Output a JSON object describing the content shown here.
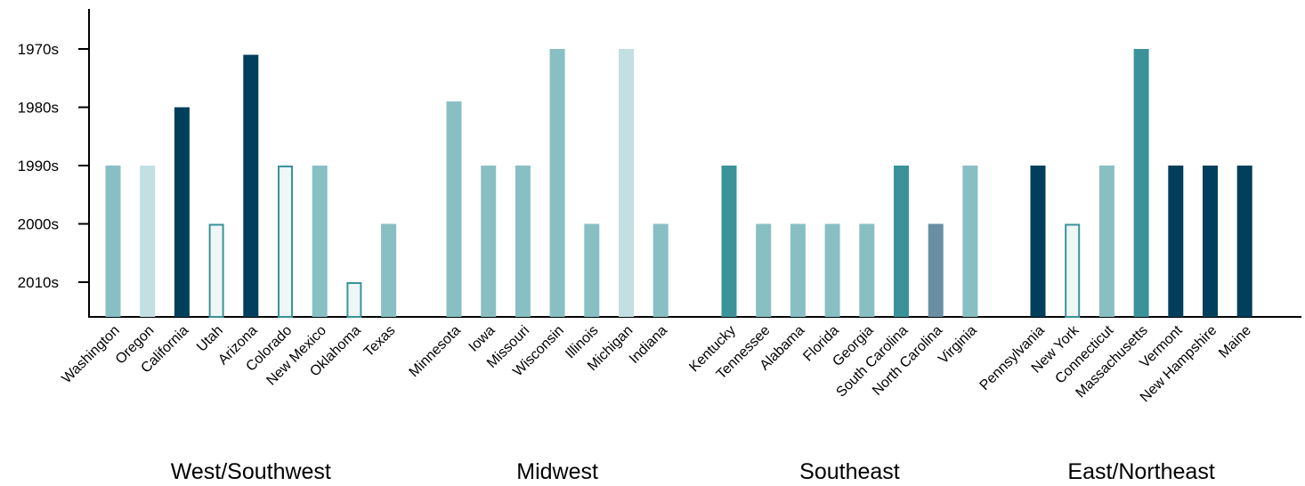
{
  "colors": {
    "dark_blue": "#003f5c",
    "teal": "#3a9399",
    "light_teal": "#88bfc3",
    "pale": "#c4dfe2",
    "slate": "#6a8fa4",
    "outline_fill": "#eef6f6",
    "outline_stroke": "#3a9399"
  },
  "chart_data": {
    "type": "bar",
    "orientation": "vertical",
    "y_axis": {
      "ticks": [
        "1970s",
        "1980s",
        "1990s",
        "2000s",
        "2010s"
      ],
      "tick_values": [
        1970,
        1980,
        1990,
        2000,
        2010
      ],
      "reversed": true,
      "baseline": 2015.5,
      "range": [
        2015.5,
        1965
      ]
    },
    "grid": false,
    "legend": null,
    "groups": [
      {
        "label": "West/Southwest",
        "bars": [
          {
            "category": "Washington",
            "value": 1990,
            "style": "light_teal"
          },
          {
            "category": "Oregon",
            "value": 1990,
            "style": "pale"
          },
          {
            "category": "California",
            "value": 1980,
            "style": "dark_blue"
          },
          {
            "category": "Utah",
            "value": 2000,
            "style": "outline"
          },
          {
            "category": "Arizona",
            "value": 1971,
            "style": "dark_blue"
          },
          {
            "category": "Colorado",
            "value": 1990,
            "style": "outline"
          },
          {
            "category": "New Mexico",
            "value": 1990,
            "style": "light_teal"
          },
          {
            "category": "Oklahoma",
            "value": 2010,
            "style": "outline"
          },
          {
            "category": "Texas",
            "value": 2000,
            "style": "light_teal"
          }
        ]
      },
      {
        "label": "Midwest",
        "bars": [
          {
            "category": "Minnesota",
            "value": 1979,
            "style": "light_teal"
          },
          {
            "category": "Iowa",
            "value": 1990,
            "style": "light_teal"
          },
          {
            "category": "Missouri",
            "value": 1990,
            "style": "light_teal"
          },
          {
            "category": "Wisconsin",
            "value": 1970,
            "style": "light_teal"
          },
          {
            "category": "Illinois",
            "value": 2000,
            "style": "light_teal"
          },
          {
            "category": "Michigan",
            "value": 1970,
            "style": "pale"
          },
          {
            "category": "Indiana",
            "value": 2000,
            "style": "light_teal"
          }
        ]
      },
      {
        "label": "Southeast",
        "bars": [
          {
            "category": "Kentucky",
            "value": 1990,
            "style": "teal"
          },
          {
            "category": "Tennessee",
            "value": 2000,
            "style": "light_teal"
          },
          {
            "category": "Alabama",
            "value": 2000,
            "style": "light_teal"
          },
          {
            "category": "Florida",
            "value": 2000,
            "style": "light_teal"
          },
          {
            "category": "Georgia",
            "value": 2000,
            "style": "light_teal"
          },
          {
            "category": "South Carolina",
            "value": 1990,
            "style": "teal"
          },
          {
            "category": "North Carolina",
            "value": 2000,
            "style": "slate"
          },
          {
            "category": "Virginia",
            "value": 1990,
            "style": "light_teal"
          }
        ]
      },
      {
        "label": "East/Northeast",
        "bars": [
          {
            "category": "Pennsylvania",
            "value": 1990,
            "style": "dark_blue"
          },
          {
            "category": "New York",
            "value": 2000,
            "style": "outline"
          },
          {
            "category": "Connecticut",
            "value": 1990,
            "style": "light_teal"
          },
          {
            "category": "Massachusetts",
            "value": 1970,
            "style": "teal"
          },
          {
            "category": "Vermont",
            "value": 1990,
            "style": "dark_blue"
          },
          {
            "category": "New Hampshire",
            "value": 1990,
            "style": "dark_blue"
          },
          {
            "category": "Maine",
            "value": 1990,
            "style": "dark_blue"
          }
        ]
      }
    ]
  }
}
